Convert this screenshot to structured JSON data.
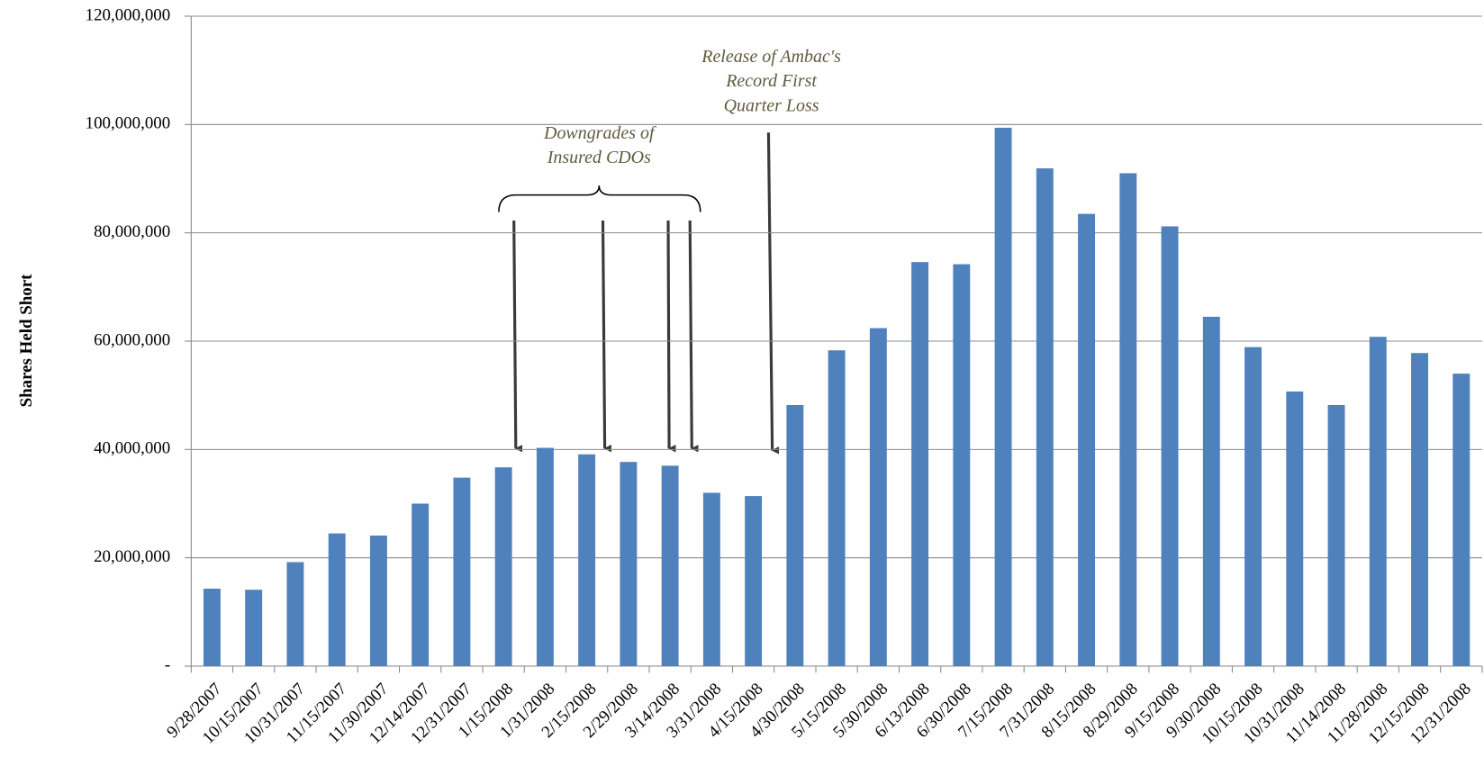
{
  "chart_data": {
    "type": "bar",
    "y_axis_label": "Shares Held Short",
    "categories": [
      "9/28/2007",
      "10/15/2007",
      "10/31/2007",
      "11/15/2007",
      "11/30/2007",
      "12/14/2007",
      "12/31/2007",
      "1/15/2008",
      "1/31/2008",
      "2/15/2008",
      "2/29/2008",
      "3/14/2008",
      "3/31/2008",
      "4/15/2008",
      "4/30/2008",
      "5/15/2008",
      "5/30/2008",
      "6/13/2008",
      "6/30/2008",
      "7/15/2008",
      "7/31/2008",
      "8/15/2008",
      "8/29/2008",
      "9/15/2008",
      "9/30/2008",
      "10/15/2008",
      "10/31/2008",
      "11/14/2008",
      "11/28/2008",
      "12/15/2008",
      "12/31/2008"
    ],
    "values": [
      14300000,
      14100000,
      19200000,
      24500000,
      24100000,
      30000000,
      34800000,
      36700000,
      40300000,
      39100000,
      37700000,
      37000000,
      32000000,
      31400000,
      48200000,
      58300000,
      62400000,
      74600000,
      74200000,
      99400000,
      91900000,
      83500000,
      91000000,
      81200000,
      64500000,
      58900000,
      50700000,
      48200000,
      60800000,
      57800000,
      54000000
    ],
    "color": "#4f81bd",
    "ylim": [
      0,
      120000000
    ],
    "yticks": [
      {
        "value": 0,
        "label": "-"
      },
      {
        "value": 20000000,
        "label": "20,000,000"
      },
      {
        "value": 40000000,
        "label": "40,000,000"
      },
      {
        "value": 60000000,
        "label": "60,000,000"
      },
      {
        "value": 80000000,
        "label": "80,000,000"
      },
      {
        "value": 100000000,
        "label": "100,000,000"
      },
      {
        "value": 120000000,
        "label": "120,000,000"
      }
    ],
    "grid": true,
    "annotations": [
      {
        "text": [
          "Downgrades of",
          "Insured CDOs"
        ]
      },
      {
        "text": [
          "Release of Ambac's",
          "Record First",
          "Quarter Loss"
        ]
      }
    ]
  }
}
